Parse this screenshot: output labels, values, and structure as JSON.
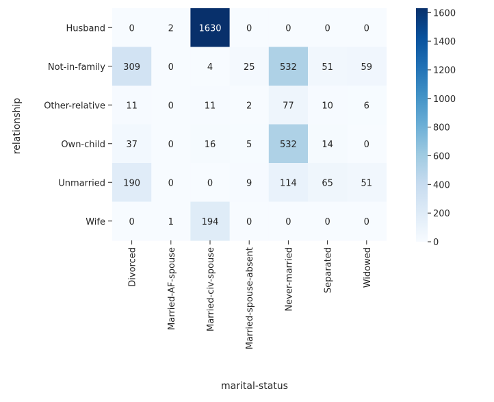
{
  "chart_data": {
    "type": "heatmap",
    "title": "",
    "xlabel": "marital-status",
    "ylabel": "relationship",
    "x_categories": [
      "Divorced",
      "Married-AF-spouse",
      "Married-civ-spouse",
      "Married-spouse-absent",
      "Never-married",
      "Separated",
      "Widowed"
    ],
    "y_categories": [
      "Husband",
      "Not-in-family",
      "Other-relative",
      "Own-child",
      "Unmarried",
      "Wife"
    ],
    "values": [
      [
        0,
        2,
        1630,
        0,
        0,
        0,
        0
      ],
      [
        309,
        0,
        4,
        25,
        532,
        51,
        59
      ],
      [
        11,
        0,
        11,
        2,
        77,
        10,
        6
      ],
      [
        37,
        0,
        16,
        5,
        532,
        14,
        0
      ],
      [
        190,
        0,
        0,
        9,
        114,
        65,
        51
      ],
      [
        0,
        1,
        194,
        0,
        0,
        0,
        0
      ]
    ],
    "colormap": "Blues",
    "colorbar": {
      "range": [
        0,
        1630
      ],
      "ticks": [
        0,
        200,
        400,
        600,
        800,
        1000,
        1200,
        1400,
        1600
      ],
      "tick_labels": [
        "0",
        "200",
        "400",
        "600",
        "800",
        "1000",
        "1200",
        "1400",
        "1600"
      ],
      "placement": "right"
    },
    "grid": false,
    "annotations": "cell values shown"
  }
}
